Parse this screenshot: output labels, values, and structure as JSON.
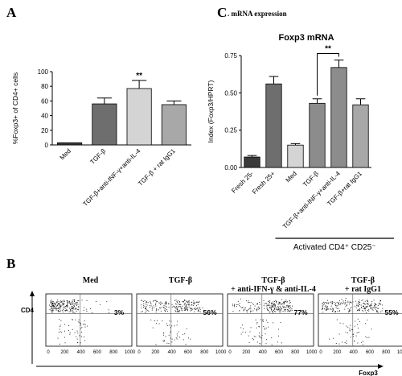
{
  "panels": {
    "a": "A",
    "b": "B",
    "c": "C"
  },
  "panel_c_heading": ". mRNA expression",
  "chart_data": [
    {
      "type": "bar",
      "id": "A",
      "ylabel": "%Foxp3+ of CD4+ cells",
      "ylim": [
        0,
        100
      ],
      "yticks": [
        "0",
        "20",
        "40",
        "60",
        "80",
        "100"
      ],
      "categories": [
        "Med",
        "TGF-β",
        "TGF-β+anti-INF-γ+anti-IL-4",
        "TGF-β + rat IgG1"
      ],
      "values": [
        3,
        56,
        77,
        55
      ],
      "errors": [
        0,
        8,
        11,
        5
      ],
      "colors": [
        "#3a3a3a",
        "#6e6e6e",
        "#d4d4d4",
        "#a8a8a8"
      ],
      "annotation": "**"
    },
    {
      "type": "bar",
      "id": "C",
      "title": "Foxp3 mRNA",
      "ylabel": "Index (Foxp3/HPRT)",
      "ylim": [
        0,
        0.75
      ],
      "yticks": [
        "0.00",
        "0.25",
        "0.50",
        "0.75"
      ],
      "categories": [
        "Fresh 25-",
        "Fresh 25+",
        "Med",
        "TGF-β",
        "TGF-β+anti-INF-γ+anti-IL-4",
        "TGF-β+rat IgG1"
      ],
      "values": [
        0.07,
        0.56,
        0.15,
        0.43,
        0.67,
        0.42
      ],
      "errors": [
        0.01,
        0.05,
        0.01,
        0.03,
        0.05,
        0.04
      ],
      "colors": [
        "#3a3a3a",
        "#6e6e6e",
        "#d4d4d4",
        "#8c8c8c",
        "#8c8c8c",
        "#a8a8a8"
      ],
      "annotation": "**",
      "group_label": "Activated CD4⁺ CD25⁻"
    }
  ],
  "flow": {
    "y_axis_label": "CD4",
    "x_axis_label": "Foxp3",
    "x_ticks": [
      "0",
      "200",
      "400",
      "600",
      "800",
      "1000"
    ],
    "plots": [
      {
        "title": "Med",
        "subtitle": "",
        "percent": "3%",
        "value": 3
      },
      {
        "title": "TGF-β",
        "subtitle": "",
        "percent": "56%",
        "value": 56
      },
      {
        "title": "TGF-β",
        "subtitle": "+ anti-IFN-γ & anti-IL-4",
        "percent": "77%",
        "value": 77
      },
      {
        "title": "TGF-β",
        "subtitle": "+ rat IgG1",
        "percent": "55%",
        "value": 55
      }
    ]
  }
}
